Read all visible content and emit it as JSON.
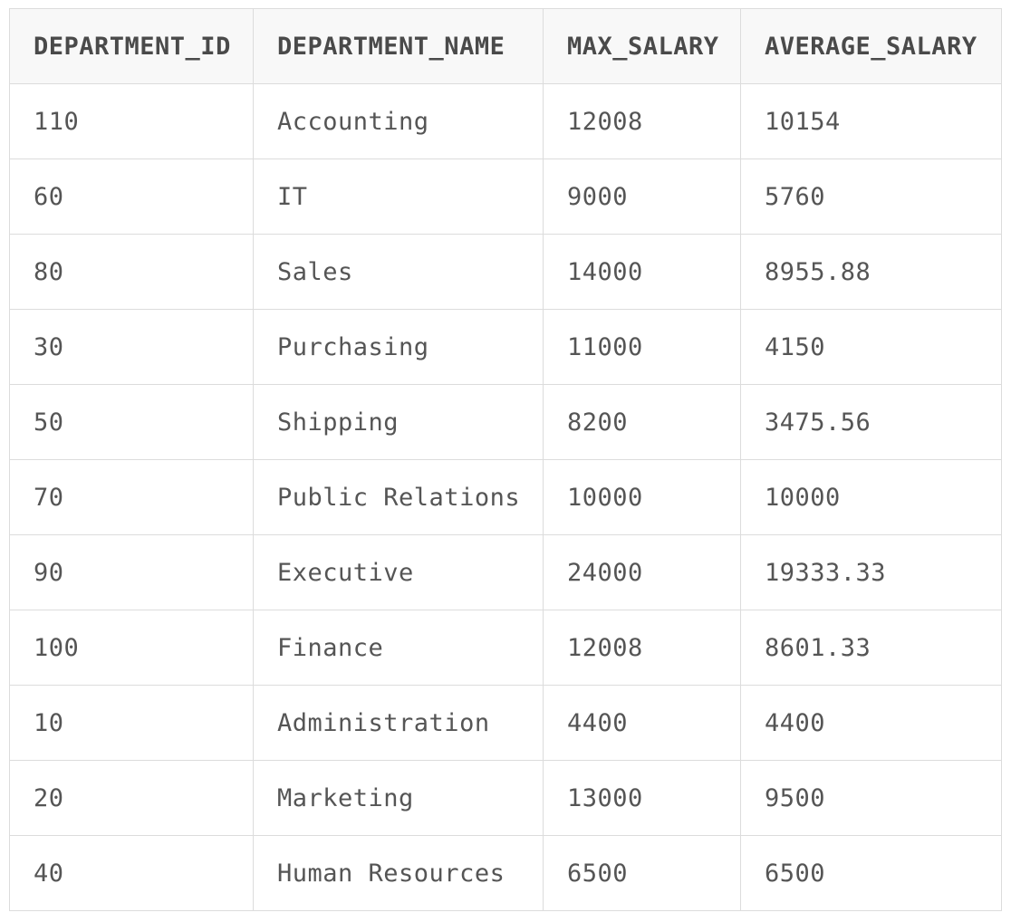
{
  "table": {
    "columns": [
      "DEPARTMENT_ID",
      "DEPARTMENT_NAME",
      "MAX_SALARY",
      "AVERAGE_SALARY"
    ],
    "rows": [
      [
        "110",
        "Accounting",
        "12008",
        "10154"
      ],
      [
        "60",
        "IT",
        "9000",
        "5760"
      ],
      [
        "80",
        "Sales",
        "14000",
        "8955.88"
      ],
      [
        "30",
        "Purchasing",
        "11000",
        "4150"
      ],
      [
        "50",
        "Shipping",
        "8200",
        "3475.56"
      ],
      [
        "70",
        "Public Relations",
        "10000",
        "10000"
      ],
      [
        "90",
        "Executive",
        "24000",
        "19333.33"
      ],
      [
        "100",
        "Finance",
        "12008",
        "8601.33"
      ],
      [
        "10",
        "Administration",
        "4400",
        "4400"
      ],
      [
        "20",
        "Marketing",
        "13000",
        "9500"
      ],
      [
        "40",
        "Human Resources",
        "6500",
        "6500"
      ]
    ]
  }
}
